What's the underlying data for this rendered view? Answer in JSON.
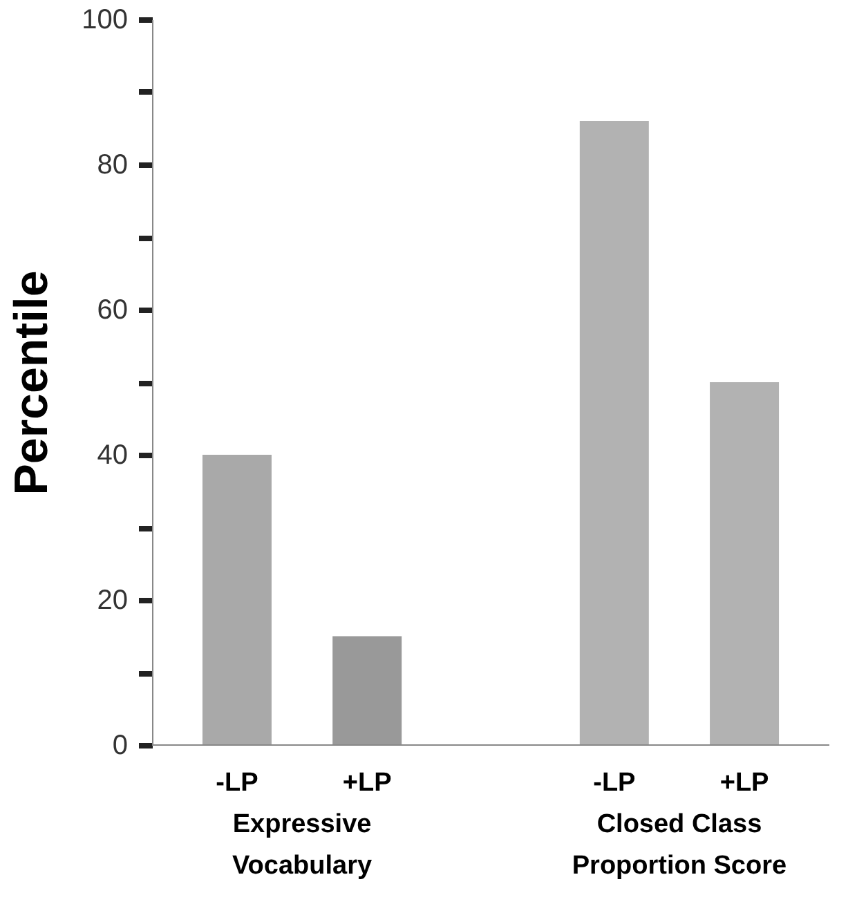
{
  "chart_data": {
    "type": "bar",
    "ylabel": "Percentile",
    "categories": [
      "-LP",
      "+LP",
      "-LP",
      "+LP"
    ],
    "values": [
      40,
      15,
      86,
      50
    ],
    "colors": [
      "#a9a9a9",
      "#999999",
      "#b2b2b2",
      "#b2b2b2"
    ],
    "ylim": [
      0,
      100
    ],
    "yticks": [
      0,
      {
        "value": 10,
        "label": null
      },
      20,
      {
        "value": 30,
        "label": null
      },
      40,
      {
        "value": 50,
        "label": null
      },
      60,
      {
        "value": 70,
        "label": null
      },
      80,
      {
        "value": 90,
        "label": null
      },
      100
    ],
    "annotations": [
      "Expressive Vocabulary",
      "Closed Class Proportion Score"
    ],
    "grid": false
  }
}
